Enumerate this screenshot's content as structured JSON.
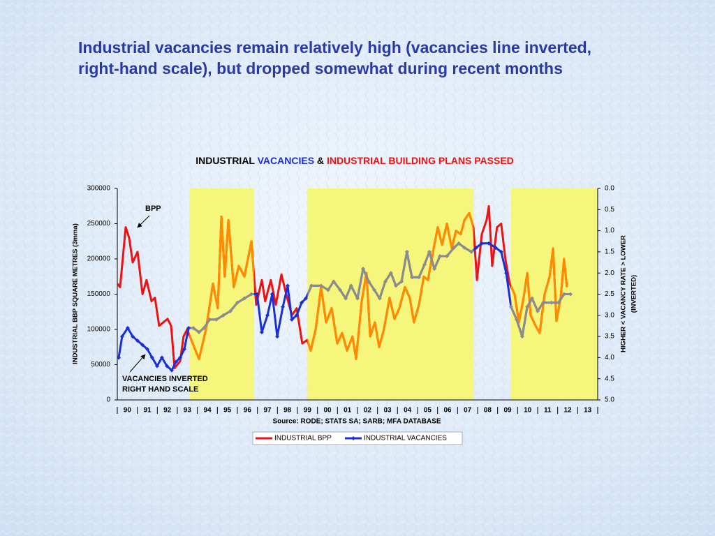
{
  "slide_title": [
    "Industrial vacancies remain relatively high  (vacancies line inverted,",
    "right-hand scale), but dropped somewhat during recent months"
  ],
  "chart_data": {
    "type": "line",
    "title_parts": [
      {
        "text": "INDUSTRIAL ",
        "color": "#000000"
      },
      {
        "text": "VACANCIES",
        "color": "#1a2fd6"
      },
      {
        "text": " & ",
        "color": "#000000"
      },
      {
        "text": "INDUSTRIAL BUILDING PLANS PASSED",
        "color": "#ee1111"
      }
    ],
    "ylabel": "INDUSTRIAL BBP SQUARE METRES (3mma)",
    "y2label": [
      "HIGHER  <   VACANCY RATE   > LOWER",
      "(INVERTED)"
    ],
    "source": "Source: RODE; STATS SA; SARB; MFA DATABASE",
    "annotations": {
      "bpp": "BPP",
      "vacancies": [
        "VACANCIES INVERTED",
        "RIGHT HAND SCALE"
      ]
    },
    "xlim": [
      1990,
      2014
    ],
    "xticks": [
      {
        "value": 1990.5,
        "label": "90"
      },
      {
        "value": 1991.5,
        "label": "91"
      },
      {
        "value": 1992.5,
        "label": "92"
      },
      {
        "value": 1993.5,
        "label": "93"
      },
      {
        "value": 1994.5,
        "label": "94"
      },
      {
        "value": 1995.5,
        "label": "95"
      },
      {
        "value": 1996.5,
        "label": "96"
      },
      {
        "value": 1997.5,
        "label": "97"
      },
      {
        "value": 1998.5,
        "label": "98"
      },
      {
        "value": 1999.5,
        "label": "99"
      },
      {
        "value": 2000.5,
        "label": "00"
      },
      {
        "value": 2001.5,
        "label": "01"
      },
      {
        "value": 2002.5,
        "label": "02"
      },
      {
        "value": 2003.5,
        "label": "03"
      },
      {
        "value": 2004.5,
        "label": "04"
      },
      {
        "value": 2005.5,
        "label": "05"
      },
      {
        "value": 2006.5,
        "label": "06"
      },
      {
        "value": 2007.5,
        "label": "07"
      },
      {
        "value": 2008.5,
        "label": "08"
      },
      {
        "value": 2009.5,
        "label": "09"
      },
      {
        "value": 2010.5,
        "label": "10"
      },
      {
        "value": 2011.5,
        "label": "11"
      },
      {
        "value": 2012.5,
        "label": "12"
      },
      {
        "value": 2013.5,
        "label": "13"
      }
    ],
    "ylim": [
      0,
      300000
    ],
    "yticks": [
      0,
      50000,
      100000,
      150000,
      200000,
      250000,
      300000
    ],
    "y2lim": [
      0,
      5
    ],
    "y2_inverted": true,
    "y2ticks": [
      {
        "value": 0,
        "label": "0.0"
      },
      {
        "value": 0.5,
        "label": "0.5"
      },
      {
        "value": 1,
        "label": "1.0"
      },
      {
        "value": 1.5,
        "label": "1.5"
      },
      {
        "value": 2,
        "label": "2.0"
      },
      {
        "value": 2.5,
        "label": "2.5"
      },
      {
        "value": 3,
        "label": "3.0"
      },
      {
        "value": 3.5,
        "label": "3.5"
      },
      {
        "value": 4,
        "label": "4.0"
      },
      {
        "value": 4.5,
        "label": "4.5"
      },
      {
        "value": 5,
        "label": "5.0"
      }
    ],
    "shaded_periods": [
      [
        1993.6,
        1996.84
      ],
      [
        1999.5,
        2007.8
      ],
      [
        2009.67,
        2014
      ]
    ],
    "shaded_color": "#f6f67c",
    "series": [
      {
        "name": "INDUSTRIAL BPP",
        "color": "#ee1111",
        "shaded_color": "#ff8c00",
        "axis": "y",
        "x": [
          1990.0,
          1990.14,
          1990.42,
          1990.59,
          1990.77,
          1991.01,
          1991.26,
          1991.46,
          1991.71,
          1991.88,
          1992.09,
          1992.3,
          1992.51,
          1992.69,
          1992.86,
          1993.14,
          1993.31,
          1993.49,
          1993.91,
          1994.08,
          1994.43,
          1994.78,
          1995.02,
          1995.2,
          1995.37,
          1995.55,
          1995.82,
          1996.07,
          1996.35,
          1996.7,
          1996.94,
          1997.22,
          1997.39,
          1997.67,
          1997.92,
          1998.2,
          1998.44,
          1998.72,
          1998.96,
          1999.24,
          1999.49,
          1999.66,
          1999.91,
          2000.18,
          2000.43,
          2000.71,
          2000.99,
          2001.23,
          2001.48,
          2001.75,
          2001.93,
          2002.21,
          2002.45,
          2002.63,
          2002.87,
          2003.08,
          2003.32,
          2003.6,
          2003.85,
          2004.09,
          2004.37,
          2004.61,
          2004.82,
          2005.07,
          2005.31,
          2005.52,
          2005.77,
          2006.01,
          2006.22,
          2006.47,
          2006.71,
          2006.92,
          2007.16,
          2007.34,
          2007.58,
          2007.79,
          2007.97,
          2008.21,
          2008.45,
          2008.56,
          2008.73,
          2008.97,
          2009.18,
          2009.39,
          2009.6,
          2009.85,
          2010.06,
          2010.3,
          2010.48,
          2010.65,
          2010.9,
          2011.1,
          2011.35,
          2011.6,
          2011.77,
          2011.94,
          2012.15,
          2012.32,
          2012.46
        ],
        "values": [
          165000,
          160000,
          245000,
          230000,
          195000,
          210000,
          150000,
          170000,
          140000,
          145000,
          105000,
          110000,
          115000,
          105000,
          45000,
          55000,
          90000,
          100000,
          70000,
          58000,
          100000,
          165000,
          130000,
          260000,
          175000,
          255000,
          160000,
          190000,
          175000,
          225000,
          135000,
          170000,
          140000,
          170000,
          135000,
          178000,
          150000,
          120000,
          130000,
          80000,
          85000,
          70000,
          100000,
          160000,
          110000,
          130000,
          80000,
          95000,
          70000,
          90000,
          58000,
          140000,
          180000,
          90000,
          110000,
          75000,
          100000,
          145000,
          115000,
          130000,
          160000,
          145000,
          110000,
          135000,
          175000,
          170000,
          210000,
          245000,
          220000,
          250000,
          215000,
          240000,
          235000,
          255000,
          265000,
          245000,
          170000,
          235000,
          255000,
          275000,
          190000,
          245000,
          250000,
          200000,
          165000,
          150000,
          110000,
          145000,
          180000,
          120000,
          105000,
          95000,
          150000,
          175000,
          215000,
          112000,
          145000,
          200000,
          160000
        ]
      },
      {
        "name": "INDUSTRIAL VACANCIES",
        "color": "#1a2fd6",
        "shaded_color": "#8c8c8c",
        "axis": "y2",
        "marker": "diamond",
        "x": [
          1990.07,
          1990.24,
          1990.52,
          1990.77,
          1991.01,
          1991.26,
          1991.5,
          1991.74,
          1991.99,
          1992.23,
          1992.48,
          1992.72,
          1992.93,
          1993.14,
          1993.35,
          1993.56,
          1993.8,
          1994.08,
          1994.33,
          1994.61,
          1994.95,
          1995.3,
          1995.65,
          1996.0,
          1996.35,
          1996.7,
          1996.98,
          1997.22,
          1997.5,
          1997.74,
          1997.99,
          1998.27,
          1998.51,
          1998.72,
          1998.96,
          1999.21,
          1999.42,
          1999.7,
          2000.18,
          2000.53,
          2000.81,
          2001.13,
          2001.41,
          2001.68,
          2002.0,
          2002.28,
          2002.56,
          2002.84,
          2003.11,
          2003.39,
          2003.67,
          2003.92,
          2004.2,
          2004.47,
          2004.72,
          2005.07,
          2005.35,
          2005.59,
          2005.84,
          2006.12,
          2006.47,
          2006.82,
          2007.06,
          2007.34,
          2007.69,
          2007.93,
          2008.21,
          2008.56,
          2008.9,
          2009.18,
          2009.43,
          2009.67,
          2009.95,
          2010.23,
          2010.48,
          2010.72,
          2011.0,
          2011.28,
          2011.69,
          2012.04,
          2012.32,
          2012.64
        ],
        "values": [
          4.0,
          3.5,
          3.3,
          3.5,
          3.6,
          3.7,
          3.8,
          4.0,
          4.2,
          4.0,
          4.2,
          4.3,
          4.1,
          4.0,
          3.8,
          3.3,
          3.3,
          3.4,
          3.3,
          3.1,
          3.1,
          3.0,
          2.9,
          2.7,
          2.6,
          2.5,
          2.5,
          3.4,
          3.0,
          2.5,
          3.5,
          2.8,
          2.3,
          3.1,
          3.0,
          2.7,
          2.6,
          2.3,
          2.3,
          2.4,
          2.2,
          2.4,
          2.6,
          2.3,
          2.6,
          1.9,
          2.2,
          2.4,
          2.6,
          2.2,
          2.0,
          2.3,
          2.2,
          1.5,
          2.1,
          2.1,
          1.8,
          1.5,
          1.9,
          1.6,
          1.6,
          1.4,
          1.3,
          1.4,
          1.5,
          1.4,
          1.3,
          1.3,
          1.4,
          1.5,
          2.0,
          2.8,
          3.1,
          3.5,
          2.8,
          2.6,
          2.9,
          2.7,
          2.7,
          2.7,
          2.5,
          2.5
        ]
      }
    ]
  }
}
